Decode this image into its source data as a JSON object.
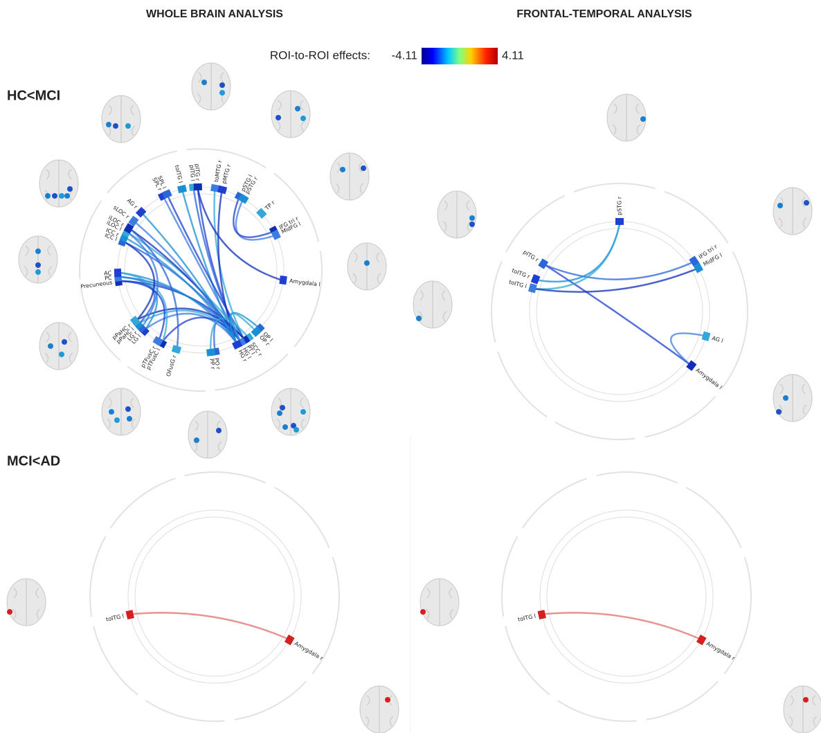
{
  "headers": [
    "WHOLE BRAIN ANALYSIS",
    "FRONTAL-TEMPORAL ANALYSIS"
  ],
  "colorbar": {
    "label": "ROI-to-ROI effects:",
    "min": -4.11,
    "max": 4.11
  },
  "rows": [
    {
      "label": "HC<MCI"
    },
    {
      "label": "MCI<AD"
    }
  ],
  "panels": [
    {
      "color": "#2f45d6",
      "nodes": [
        {
          "label": "SPL r"
        },
        {
          "label": "SPL l"
        },
        {
          "label": "toITG l"
        },
        {
          "label": "pITG l"
        },
        {
          "label": "pITG r"
        },
        {
          "label": "toMTG r"
        },
        {
          "label": "pMTG r"
        },
        {
          "label": "pSTG l"
        },
        {
          "label": "pSTG r"
        },
        {
          "label": "TP r"
        },
        {
          "label": "IFG tri r"
        },
        {
          "label": "MidFG l"
        },
        {
          "label": "Amygdala l"
        },
        {
          "label": "OP l"
        },
        {
          "label": "OP r"
        },
        {
          "label": "SCC r"
        },
        {
          "label": "PT l"
        },
        {
          "label": "HG l"
        },
        {
          "label": "HG r"
        },
        {
          "label": "PO r"
        },
        {
          "label": "PP r"
        },
        {
          "label": "OFusG r"
        },
        {
          "label": "pTFusC l"
        },
        {
          "label": "pTFusC r"
        },
        {
          "label": "LG l"
        },
        {
          "label": "LG r"
        },
        {
          "label": "pPaHC l"
        },
        {
          "label": "pPaHC r"
        },
        {
          "label": "Precuneous"
        },
        {
          "label": "PC"
        },
        {
          "label": "AC"
        },
        {
          "label": "ICC l"
        },
        {
          "label": "ICC r"
        },
        {
          "label": "iLOC l"
        },
        {
          "label": "iLOC r"
        },
        {
          "label": "sLOC r"
        },
        {
          "label": "AG r"
        }
      ],
      "edges": [
        [
          17,
          4
        ],
        [
          17,
          3
        ],
        [
          18,
          2
        ],
        [
          16,
          5
        ],
        [
          18,
          6
        ],
        [
          17,
          0
        ],
        [
          16,
          1
        ],
        [
          17,
          31
        ],
        [
          18,
          32
        ],
        [
          16,
          33
        ],
        [
          17,
          34
        ],
        [
          18,
          35
        ],
        [
          16,
          28
        ],
        [
          17,
          29
        ],
        [
          18,
          30
        ],
        [
          17,
          26
        ],
        [
          16,
          27
        ],
        [
          18,
          24
        ],
        [
          17,
          22
        ],
        [
          19,
          17
        ],
        [
          13,
          18
        ],
        [
          14,
          17
        ],
        [
          4,
          12
        ],
        [
          8,
          11
        ],
        [
          7,
          10
        ],
        [
          28,
          26
        ],
        [
          29,
          24
        ],
        [
          30,
          22
        ],
        [
          31,
          27
        ],
        [
          33,
          25
        ],
        [
          28,
          23
        ],
        [
          34,
          21
        ],
        [
          36,
          18
        ],
        [
          15,
          20
        ]
      ]
    },
    {
      "color": "#2f45d6",
      "nodes": [
        {
          "label": "pSTG r"
        },
        {
          "label": "IFG tri r"
        },
        {
          "label": "MidFG l"
        },
        {
          "label": "AG l"
        },
        {
          "label": "Amygdala l"
        },
        {
          "label": "toITG l"
        },
        {
          "label": "toITG r"
        },
        {
          "label": "pITG r"
        }
      ],
      "edges": [
        [
          7,
          4
        ],
        [
          7,
          1
        ],
        [
          6,
          0
        ],
        [
          5,
          0
        ],
        [
          5,
          2
        ],
        [
          3,
          4
        ]
      ]
    },
    {
      "color": "#d42020",
      "nodes": [
        {
          "label": "toITG l"
        },
        {
          "label": "Amygdala r"
        }
      ],
      "edges": [
        [
          0,
          1
        ]
      ]
    },
    {
      "color": "#d42020",
      "nodes": [
        {
          "label": "toITG l"
        },
        {
          "label": "Amygdala r"
        }
      ],
      "edges": [
        [
          0,
          1
        ]
      ]
    }
  ]
}
